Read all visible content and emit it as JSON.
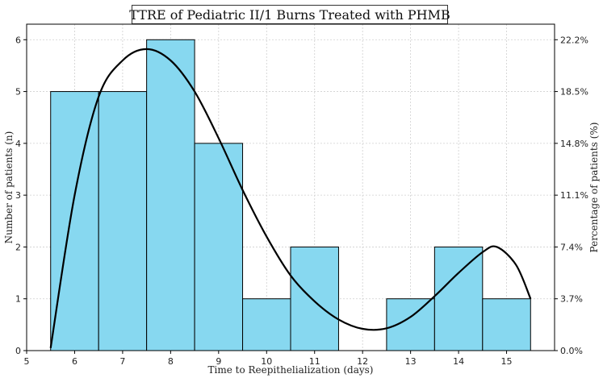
{
  "chart_data": {
    "type": "bar",
    "title": "TTRE of Pediatric II/1 Burns Treated with PHMB",
    "xlabel": "Time to Reepithelialization (days)",
    "ylabel": "Number of patients (n)",
    "ylabel_right": "Percentage of patients (%)",
    "xlim": [
      5,
      16
    ],
    "ylim": [
      0,
      6.3
    ],
    "x_ticks": [
      5,
      6,
      7,
      8,
      9,
      10,
      11,
      12,
      13,
      14,
      15
    ],
    "y_ticks": [
      0,
      1,
      2,
      3,
      4,
      5,
      6
    ],
    "right_ticks": [
      "0.0%",
      "3.7%",
      "7.4%",
      "11.1%",
      "14.8%",
      "18.5%",
      "22.2%"
    ],
    "grid": true,
    "bar_color": "#87d8f0",
    "curve_color": "#000000",
    "bins": [
      {
        "start": 5.5,
        "end": 6.5,
        "count": 5
      },
      {
        "start": 6.5,
        "end": 7.5,
        "count": 5
      },
      {
        "start": 7.5,
        "end": 8.5,
        "count": 6
      },
      {
        "start": 8.5,
        "end": 9.5,
        "count": 4
      },
      {
        "start": 9.5,
        "end": 10.5,
        "count": 1
      },
      {
        "start": 10.5,
        "end": 11.5,
        "count": 2
      },
      {
        "start": 11.5,
        "end": 12.5,
        "count": 0
      },
      {
        "start": 12.5,
        "end": 13.5,
        "count": 1
      },
      {
        "start": 13.5,
        "end": 14.5,
        "count": 2
      },
      {
        "start": 14.5,
        "end": 15.5,
        "count": 1
      }
    ],
    "curve": {
      "x": [
        5.5,
        6.0,
        6.5,
        7.0,
        7.5,
        8.0,
        8.5,
        9.0,
        9.5,
        10.0,
        10.5,
        11.0,
        11.5,
        12.0,
        12.5,
        13.0,
        13.5,
        14.0,
        14.5,
        14.8,
        15.2,
        15.5
      ],
      "y": [
        0.05,
        3.0,
        4.9,
        5.6,
        5.82,
        5.6,
        5.0,
        4.1,
        3.1,
        2.2,
        1.45,
        0.95,
        0.6,
        0.42,
        0.43,
        0.65,
        1.05,
        1.5,
        1.9,
        2.0,
        1.65,
        1.0
      ]
    }
  }
}
